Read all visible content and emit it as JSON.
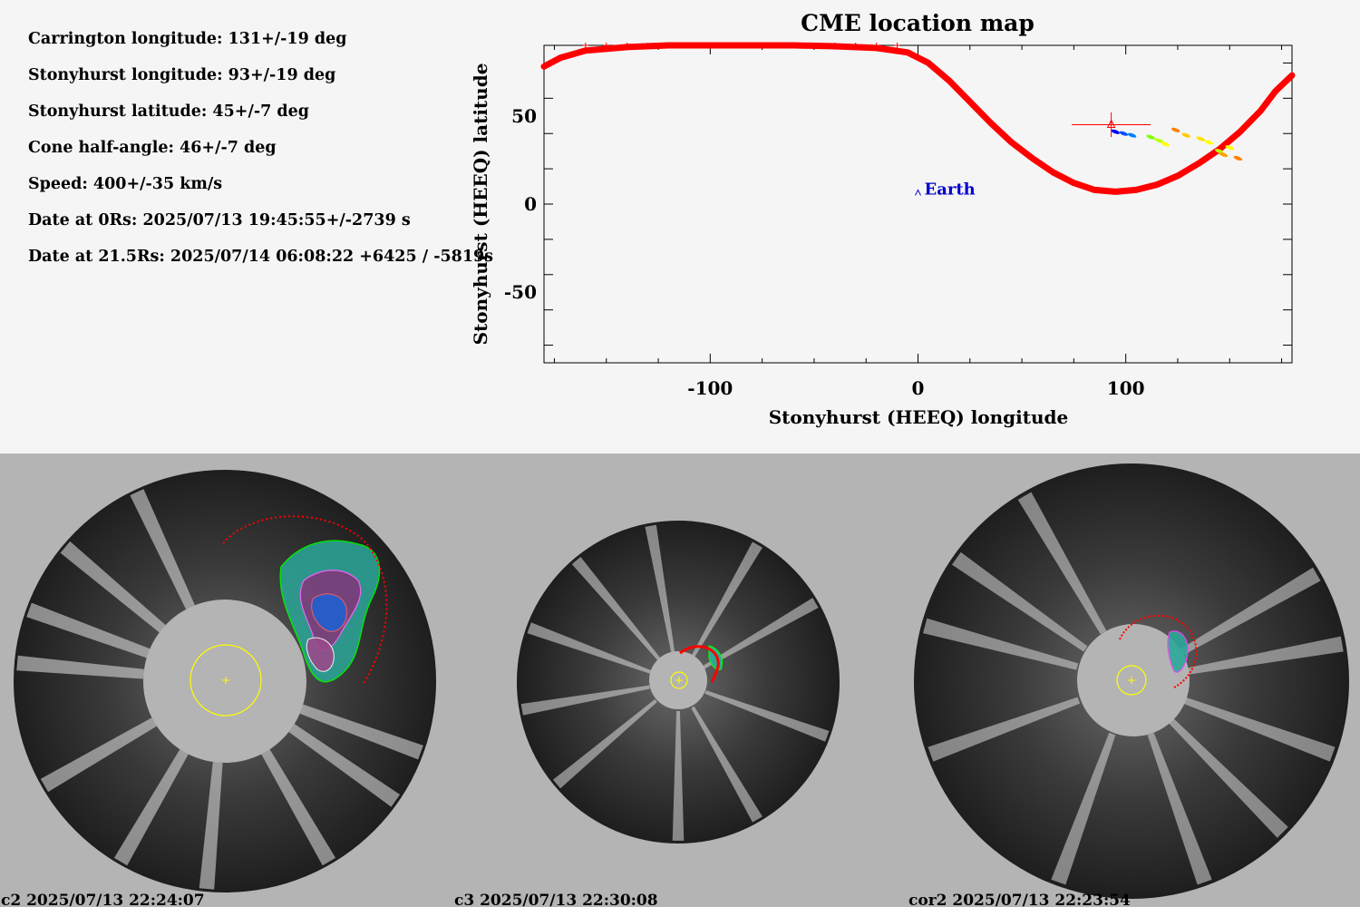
{
  "parameters": [
    "Carrington longitude: 131+/-19 deg",
    "Stonyhurst longitude: 93+/-19 deg",
    "Stonyhurst latitude: 45+/-7 deg",
    "Cone half-angle: 46+/-7 deg",
    "Speed: 400+/-35 km/s",
    "Date at 0Rs: 2025/07/13 19:45:55+/-2739 s",
    "Date at 21.5Rs: 2025/07/14 06:08:22 +6425 / -5819s"
  ],
  "chart_data": {
    "type": "scatter",
    "title": "CME location map",
    "xlabel": "Stonyhurst (HEEQ) longitude",
    "ylabel": "Stonyhurst (HEEQ) latitude",
    "xlim": [
      -180,
      180
    ],
    "ylim": [
      -90,
      90
    ],
    "x_ticks": [
      -100,
      0,
      100
    ],
    "y_ticks": [
      50,
      0,
      -50
    ],
    "grid": false,
    "series": [
      {
        "name": "",
        "kind": "boundary-curve",
        "color": "#ff0000",
        "points": [
          [
            -180,
            78
          ],
          [
            -172,
            83
          ],
          [
            -160,
            87
          ],
          [
            -140,
            89
          ],
          [
            -120,
            90
          ],
          [
            -100,
            90
          ],
          [
            -80,
            90
          ],
          [
            -60,
            90
          ],
          [
            -40,
            89.5
          ],
          [
            -20,
            88.5
          ],
          [
            -5,
            86
          ],
          [
            5,
            80
          ],
          [
            15,
            70
          ],
          [
            25,
            58
          ],
          [
            35,
            46
          ],
          [
            45,
            35
          ],
          [
            55,
            26
          ],
          [
            65,
            18
          ],
          [
            75,
            12
          ],
          [
            85,
            8
          ],
          [
            95,
            7
          ],
          [
            105,
            8
          ],
          [
            115,
            11
          ],
          [
            125,
            16
          ],
          [
            135,
            23
          ],
          [
            145,
            31
          ],
          [
            155,
            41
          ],
          [
            165,
            53
          ],
          [
            172,
            64
          ],
          [
            180,
            73
          ]
        ]
      },
      {
        "name": "",
        "kind": "tick-marks",
        "color": "#ff0000",
        "points": [
          [
            -160,
            90
          ],
          [
            -150,
            90
          ],
          [
            -140,
            90
          ],
          [
            -130,
            90
          ],
          [
            -120,
            90
          ],
          [
            -110,
            90
          ],
          [
            -100,
            90
          ],
          [
            -90,
            90
          ],
          [
            -80,
            90
          ],
          [
            -70,
            90
          ],
          [
            -60,
            90
          ],
          [
            -50,
            90
          ],
          [
            -40,
            90
          ],
          [
            -30,
            90
          ],
          [
            -20,
            90
          ],
          [
            -10,
            90
          ]
        ]
      },
      {
        "name": "",
        "kind": "cme-position",
        "color": "#ff0000",
        "x": 93,
        "y": 45,
        "xerr": 19,
        "yerr": 7
      },
      {
        "name": "",
        "kind": "detections",
        "points": [
          [
            95,
            41,
            "#0000ff"
          ],
          [
            99,
            40,
            "#0050ff"
          ],
          [
            103,
            39,
            "#0080ff"
          ],
          [
            112,
            38,
            "#80ff00"
          ],
          [
            116,
            36,
            "#c0ff00"
          ],
          [
            119,
            34,
            "#ffff00"
          ],
          [
            124,
            42,
            "#ff8000"
          ],
          [
            129,
            39,
            "#ffcc00"
          ],
          [
            136,
            37,
            "#ffe000"
          ],
          [
            140,
            35,
            "#ffff00"
          ],
          [
            145,
            30,
            "#c0ff00"
          ],
          [
            147,
            28,
            "#ffa000"
          ],
          [
            150,
            32,
            "#ffff00"
          ],
          [
            154,
            26,
            "#ff8000"
          ]
        ]
      }
    ],
    "annotations": [
      {
        "text": "Earth",
        "x": 0,
        "y": 8,
        "color": "#0000cc"
      }
    ]
  },
  "images": [
    {
      "label": "c2 2025/07/13 22:24:07",
      "occulter_color": "#b4b4b4",
      "sun_circle_color": "#ffff00"
    },
    {
      "label": "c3 2025/07/13 22:30:08",
      "occulter_color": "#b4b4b4",
      "sun_circle_color": "#ffff00"
    },
    {
      "label": "cor2 2025/07/13 22:23:54",
      "occulter_color": "#b4b4b4",
      "sun_circle_color": "#ffff00"
    }
  ]
}
